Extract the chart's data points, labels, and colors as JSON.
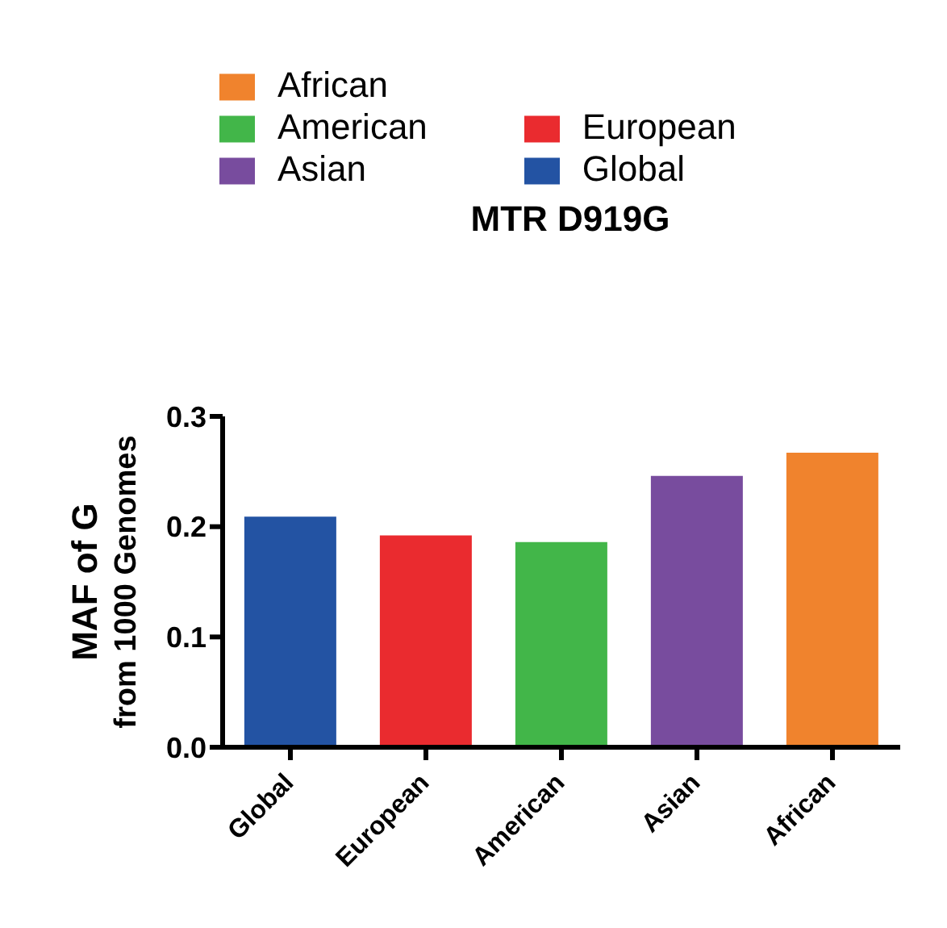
{
  "chart_data": {
    "type": "bar",
    "title": "MTR D919G",
    "ylabel": "MAF of G\nfrom 1000 Genomes",
    "categories": [
      "Global",
      "European",
      "American",
      "Asian",
      "African"
    ],
    "stacked": true,
    "series": [
      {
        "name": "Global",
        "color": "#2353a3",
        "values": [
          0.209,
          null,
          null,
          null,
          null
        ]
      },
      {
        "name": "European",
        "color": "#ea2b2f",
        "values": [
          null,
          0.192,
          null,
          null,
          null
        ]
      },
      {
        "name": "American",
        "color": "#42b649",
        "values": [
          null,
          null,
          0.186,
          null,
          null
        ]
      },
      {
        "name": "Asian",
        "color": "#784c9e",
        "values": [
          null,
          null,
          null,
          0.246,
          null
        ]
      },
      {
        "name": "African",
        "color": "#f0832d",
        "values": [
          null,
          null,
          null,
          null,
          0.267
        ]
      }
    ],
    "ylim": [
      0,
      0.3
    ],
    "yticks": [
      {
        "value": 0,
        "label": "0.0"
      },
      {
        "value": 0.1,
        "label": "0.1"
      },
      {
        "value": 0.2,
        "label": "0.2"
      },
      {
        "value": 0.3,
        "label": "0.3"
      }
    ],
    "legend": "top left",
    "grid": false
  }
}
